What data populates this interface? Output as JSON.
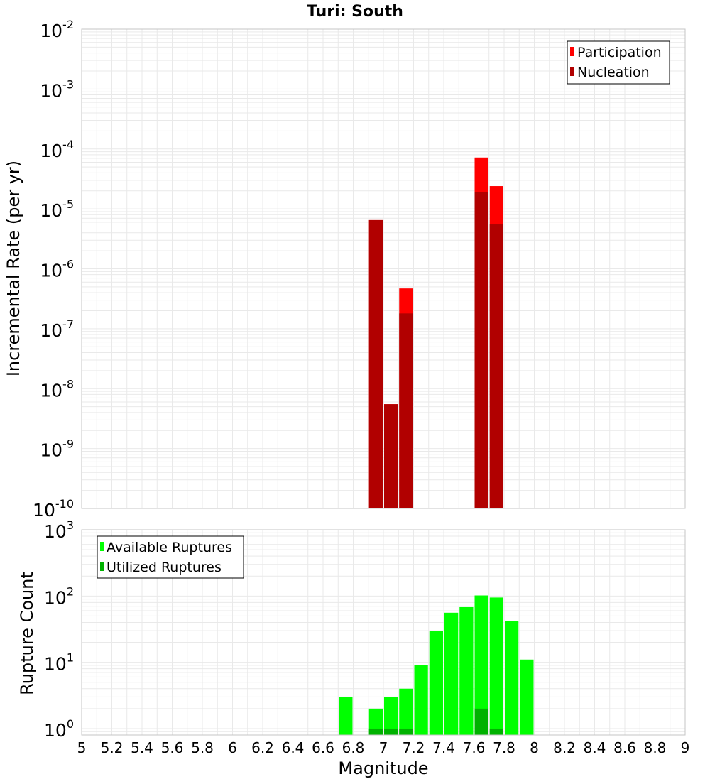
{
  "colors": {
    "participation": "#ff0000",
    "nucleation": "#b10000",
    "available": "#00ff00",
    "utilized": "#00b200",
    "grid": "#e9e9e9",
    "frame": "#c4c4c4",
    "bar_gap": "#ffffff"
  },
  "chart_data": [
    {
      "type": "bar",
      "title": "Turi: South",
      "ylabel": "Incremental Rate (per yr)",
      "xlabel": "",
      "y_scale": "log",
      "ylim": [
        1e-10,
        0.01
      ],
      "y_ticks": [
        {
          "base": "10",
          "exp": "-10"
        },
        {
          "base": "10",
          "exp": "-9"
        },
        {
          "base": "10",
          "exp": "-8"
        },
        {
          "base": "10",
          "exp": "-7"
        },
        {
          "base": "10",
          "exp": "-6"
        },
        {
          "base": "10",
          "exp": "-5"
        },
        {
          "base": "10",
          "exp": "-4"
        },
        {
          "base": "10",
          "exp": "-3"
        },
        {
          "base": "10",
          "exp": "-2"
        }
      ],
      "xlim": [
        5,
        9
      ],
      "bin_width": 0.1,
      "grid": true,
      "legend_position": "top-right",
      "series": [
        {
          "name": "Participation",
          "color_key": "participation",
          "points": [
            {
              "x": 6.95,
              "y": 6.5e-06
            },
            {
              "x": 7.05,
              "y": 5.5e-09
            },
            {
              "x": 7.15,
              "y": 4.7e-07
            },
            {
              "x": 7.65,
              "y": 7.2e-05
            },
            {
              "x": 7.75,
              "y": 2.4e-05
            }
          ]
        },
        {
          "name": "Nucleation",
          "color_key": "nucleation",
          "points": [
            {
              "x": 6.95,
              "y": 6.5e-06
            },
            {
              "x": 7.05,
              "y": 5.5e-09
            },
            {
              "x": 7.15,
              "y": 1.8e-07
            },
            {
              "x": 7.65,
              "y": 1.9e-05
            },
            {
              "x": 7.75,
              "y": 5.5e-06
            }
          ]
        }
      ]
    },
    {
      "type": "bar",
      "title": "",
      "ylabel": "Rupture Count",
      "xlabel": "Magnitude",
      "y_scale": "log",
      "ylim": [
        0.8,
        1000
      ],
      "y_ticks": [
        {
          "base": "10",
          "exp": "0",
          "value": 1
        },
        {
          "base": "10",
          "exp": "1",
          "value": 10
        },
        {
          "base": "10",
          "exp": "2",
          "value": 100
        },
        {
          "base": "10",
          "exp": "3",
          "value": 1000
        }
      ],
      "xlim": [
        5,
        9
      ],
      "bin_width": 0.1,
      "x_ticks": [
        "5",
        "5.2",
        "5.4",
        "5.6",
        "5.8",
        "6",
        "6.2",
        "6.4",
        "6.6",
        "6.8",
        "7",
        "7.2",
        "7.4",
        "7.6",
        "7.8",
        "8",
        "8.2",
        "8.4",
        "8.6",
        "8.8",
        "9"
      ],
      "grid": true,
      "legend_position": "top-left",
      "series": [
        {
          "name": "Available Ruptures",
          "color_key": "available",
          "points": [
            {
              "x": 6.75,
              "y": 3
            },
            {
              "x": 6.95,
              "y": 2
            },
            {
              "x": 7.05,
              "y": 3
            },
            {
              "x": 7.15,
              "y": 4
            },
            {
              "x": 7.25,
              "y": 9
            },
            {
              "x": 7.35,
              "y": 30
            },
            {
              "x": 7.45,
              "y": 56
            },
            {
              "x": 7.55,
              "y": 68
            },
            {
              "x": 7.65,
              "y": 102
            },
            {
              "x": 7.75,
              "y": 95
            },
            {
              "x": 7.85,
              "y": 42
            },
            {
              "x": 7.95,
              "y": 11
            }
          ]
        },
        {
          "name": "Utilized Ruptures",
          "color_key": "utilized",
          "points": [
            {
              "x": 6.95,
              "y": 1
            },
            {
              "x": 7.05,
              "y": 1
            },
            {
              "x": 7.15,
              "y": 1
            },
            {
              "x": 7.65,
              "y": 2
            },
            {
              "x": 7.75,
              "y": 1
            }
          ]
        }
      ]
    }
  ]
}
